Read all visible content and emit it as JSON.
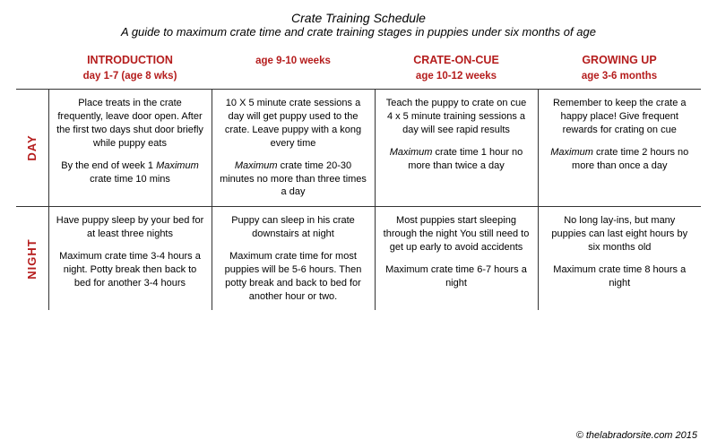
{
  "header": {
    "title": "Crate Training Schedule",
    "subtitle": "A guide to maximum crate time and crate training stages in puppies under six months of age"
  },
  "colors": {
    "accent": "#b51d1d",
    "border": "#333333",
    "background": "#ffffff",
    "text": "#000000"
  },
  "stages": [
    {
      "title": "INTRODUCTION",
      "age": "day 1-7 (age 8 wks)"
    },
    {
      "title": "",
      "age": "age 9-10 weeks"
    },
    {
      "title": "CRATE-ON-CUE",
      "age": "age 10-12 weeks"
    },
    {
      "title": "GROWING UP",
      "age": "age 3-6 months"
    }
  ],
  "rows": {
    "day": {
      "label": "DAY",
      "cells": [
        {
          "p1": "Place treats in the crate frequently, leave door open. After the first two days  shut door briefly while puppy eats",
          "p2_pre": "By the end of week 1 ",
          "p2_ital": "Maximum",
          "p2_post": " crate time 10 mins"
        },
        {
          "p1": "10 X 5 minute crate sessions a day will get puppy used to the crate. Leave puppy with a kong every time",
          "p2_pre": "",
          "p2_ital": "Maximum",
          "p2_post": " crate time 20-30 minutes no more than three times a day"
        },
        {
          "p1": "Teach the puppy to crate on cue\n4 x 5 minute training sessions a day will see rapid results",
          "p2_pre": "",
          "p2_ital": "Maximum",
          "p2_post": " crate time 1 hour no more than twice a day"
        },
        {
          "p1": "Remember to keep the crate a happy place! Give frequent rewards for crating on cue",
          "p2_pre": "",
          "p2_ital": "Maximum",
          "p2_post": " crate time 2 hours no more than once a day"
        }
      ]
    },
    "night": {
      "label": "NIGHT",
      "cells": [
        {
          "p1": "Have puppy sleep by your bed for at least three nights",
          "p2": "Maximum crate time 3-4 hours a night. Potty break then back to bed for another 3-4 hours"
        },
        {
          "p1": "Puppy can sleep in his crate downstairs at night",
          "p2": "Maximum crate time for most puppies will be 5-6 hours.  Then potty break and back to bed for another hour or two."
        },
        {
          "p1": "Most puppies start sleeping through the night You still need to get up early to avoid accidents",
          "p2": "Maximum crate time 6-7 hours a night"
        },
        {
          "p1": "No long lay-ins, but many puppies can last eight hours by six months old",
          "p2": "Maximum crate time 8 hours a night"
        }
      ]
    }
  },
  "copyright": "© thelabradorsite.com  2015"
}
